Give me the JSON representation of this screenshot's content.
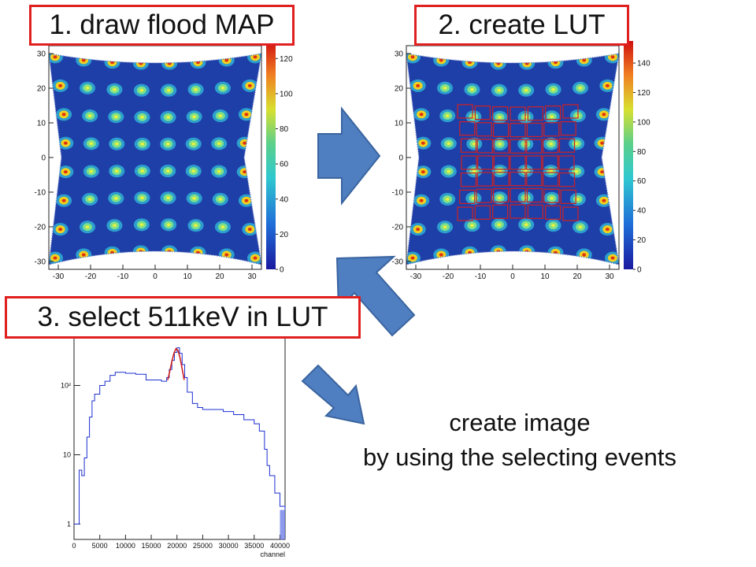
{
  "steps": {
    "step1": "1. draw flood MAP",
    "step2": "2. create LUT",
    "step3": "3. select 511keV in LUT"
  },
  "caption": {
    "line1": "create image",
    "line2": "by using the selecting events"
  },
  "flood_map_1": {
    "x_ticks": [
      "-30",
      "-20",
      "-10",
      "0",
      "10",
      "20",
      "30"
    ],
    "y_ticks": [
      "30",
      "20",
      "10",
      "0",
      "-10",
      "-20",
      "-30"
    ],
    "colorbar_ticks": [
      "120",
      "100",
      "80",
      "60",
      "40",
      "20",
      "0"
    ],
    "colorbar_max": 130
  },
  "flood_map_2": {
    "x_ticks": [
      "-30",
      "-20",
      "-10",
      "0",
      "10",
      "20",
      "30"
    ],
    "y_ticks": [
      "30",
      "20",
      "10",
      "0",
      "-10",
      "-20",
      "-30"
    ],
    "colorbar_ticks": [
      "140",
      "120",
      "100",
      "80",
      "60",
      "40",
      "20",
      "0"
    ],
    "colorbar_max": 155,
    "lut_grid": {
      "rows": 7,
      "cols": 7
    }
  },
  "chart_data": {
    "type": "line",
    "title": "",
    "xlabel": "channel",
    "ylabel": "",
    "x_ticks": [
      "0",
      "5000",
      "10000",
      "15000",
      "20000",
      "25000",
      "30000",
      "35000",
      "40000"
    ],
    "y_ticks": [
      "1",
      "10",
      "10²"
    ],
    "y_scale": "log",
    "xlim": [
      0,
      41000
    ],
    "ylim": [
      0.6,
      600
    ],
    "series": [
      {
        "x": [
          0,
          500,
          1000,
          1500,
          2000,
          2500,
          3000,
          3500,
          4000,
          5000,
          6000,
          7000,
          8000,
          10000,
          12000,
          14000,
          15000,
          16000,
          17000,
          18000,
          18500,
          19000,
          19500,
          20000,
          20500,
          21000,
          21500,
          22000,
          23000,
          24000,
          25000,
          27000,
          29000,
          31000,
          33000,
          35000,
          36000,
          37000,
          37500,
          38000,
          39000,
          40000,
          41000
        ],
        "y": [
          1,
          1,
          6,
          5,
          9,
          18,
          35,
          60,
          75,
          100,
          115,
          140,
          155,
          150,
          145,
          120,
          120,
          120,
          115,
          130,
          170,
          230,
          300,
          350,
          290,
          200,
          130,
          80,
          55,
          48,
          45,
          45,
          42,
          38,
          32,
          28,
          22,
          12,
          7,
          5,
          2.8,
          1.8,
          1.6
        ]
      },
      {
        "x": [
          18200,
          18600,
          19000,
          19400,
          19800,
          20200,
          20600,
          21000,
          21400
        ],
        "y": [
          120,
          160,
          220,
          290,
          340,
          320,
          250,
          175,
          120
        ]
      }
    ]
  }
}
